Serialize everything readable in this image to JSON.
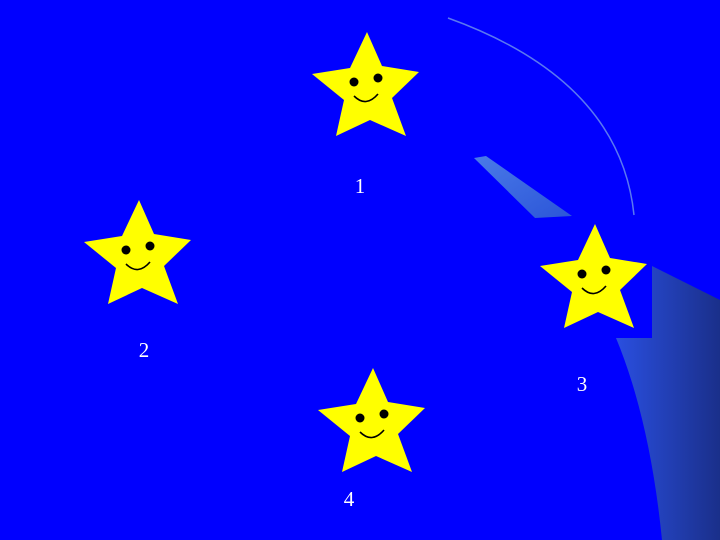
{
  "slide": {
    "background_color": "#0000ff",
    "star_color": "#ffff00",
    "label_color": "#ffffff",
    "stars": [
      {
        "label": "1"
      },
      {
        "label": "2"
      },
      {
        "label": "3"
      },
      {
        "label": "4"
      }
    ]
  }
}
